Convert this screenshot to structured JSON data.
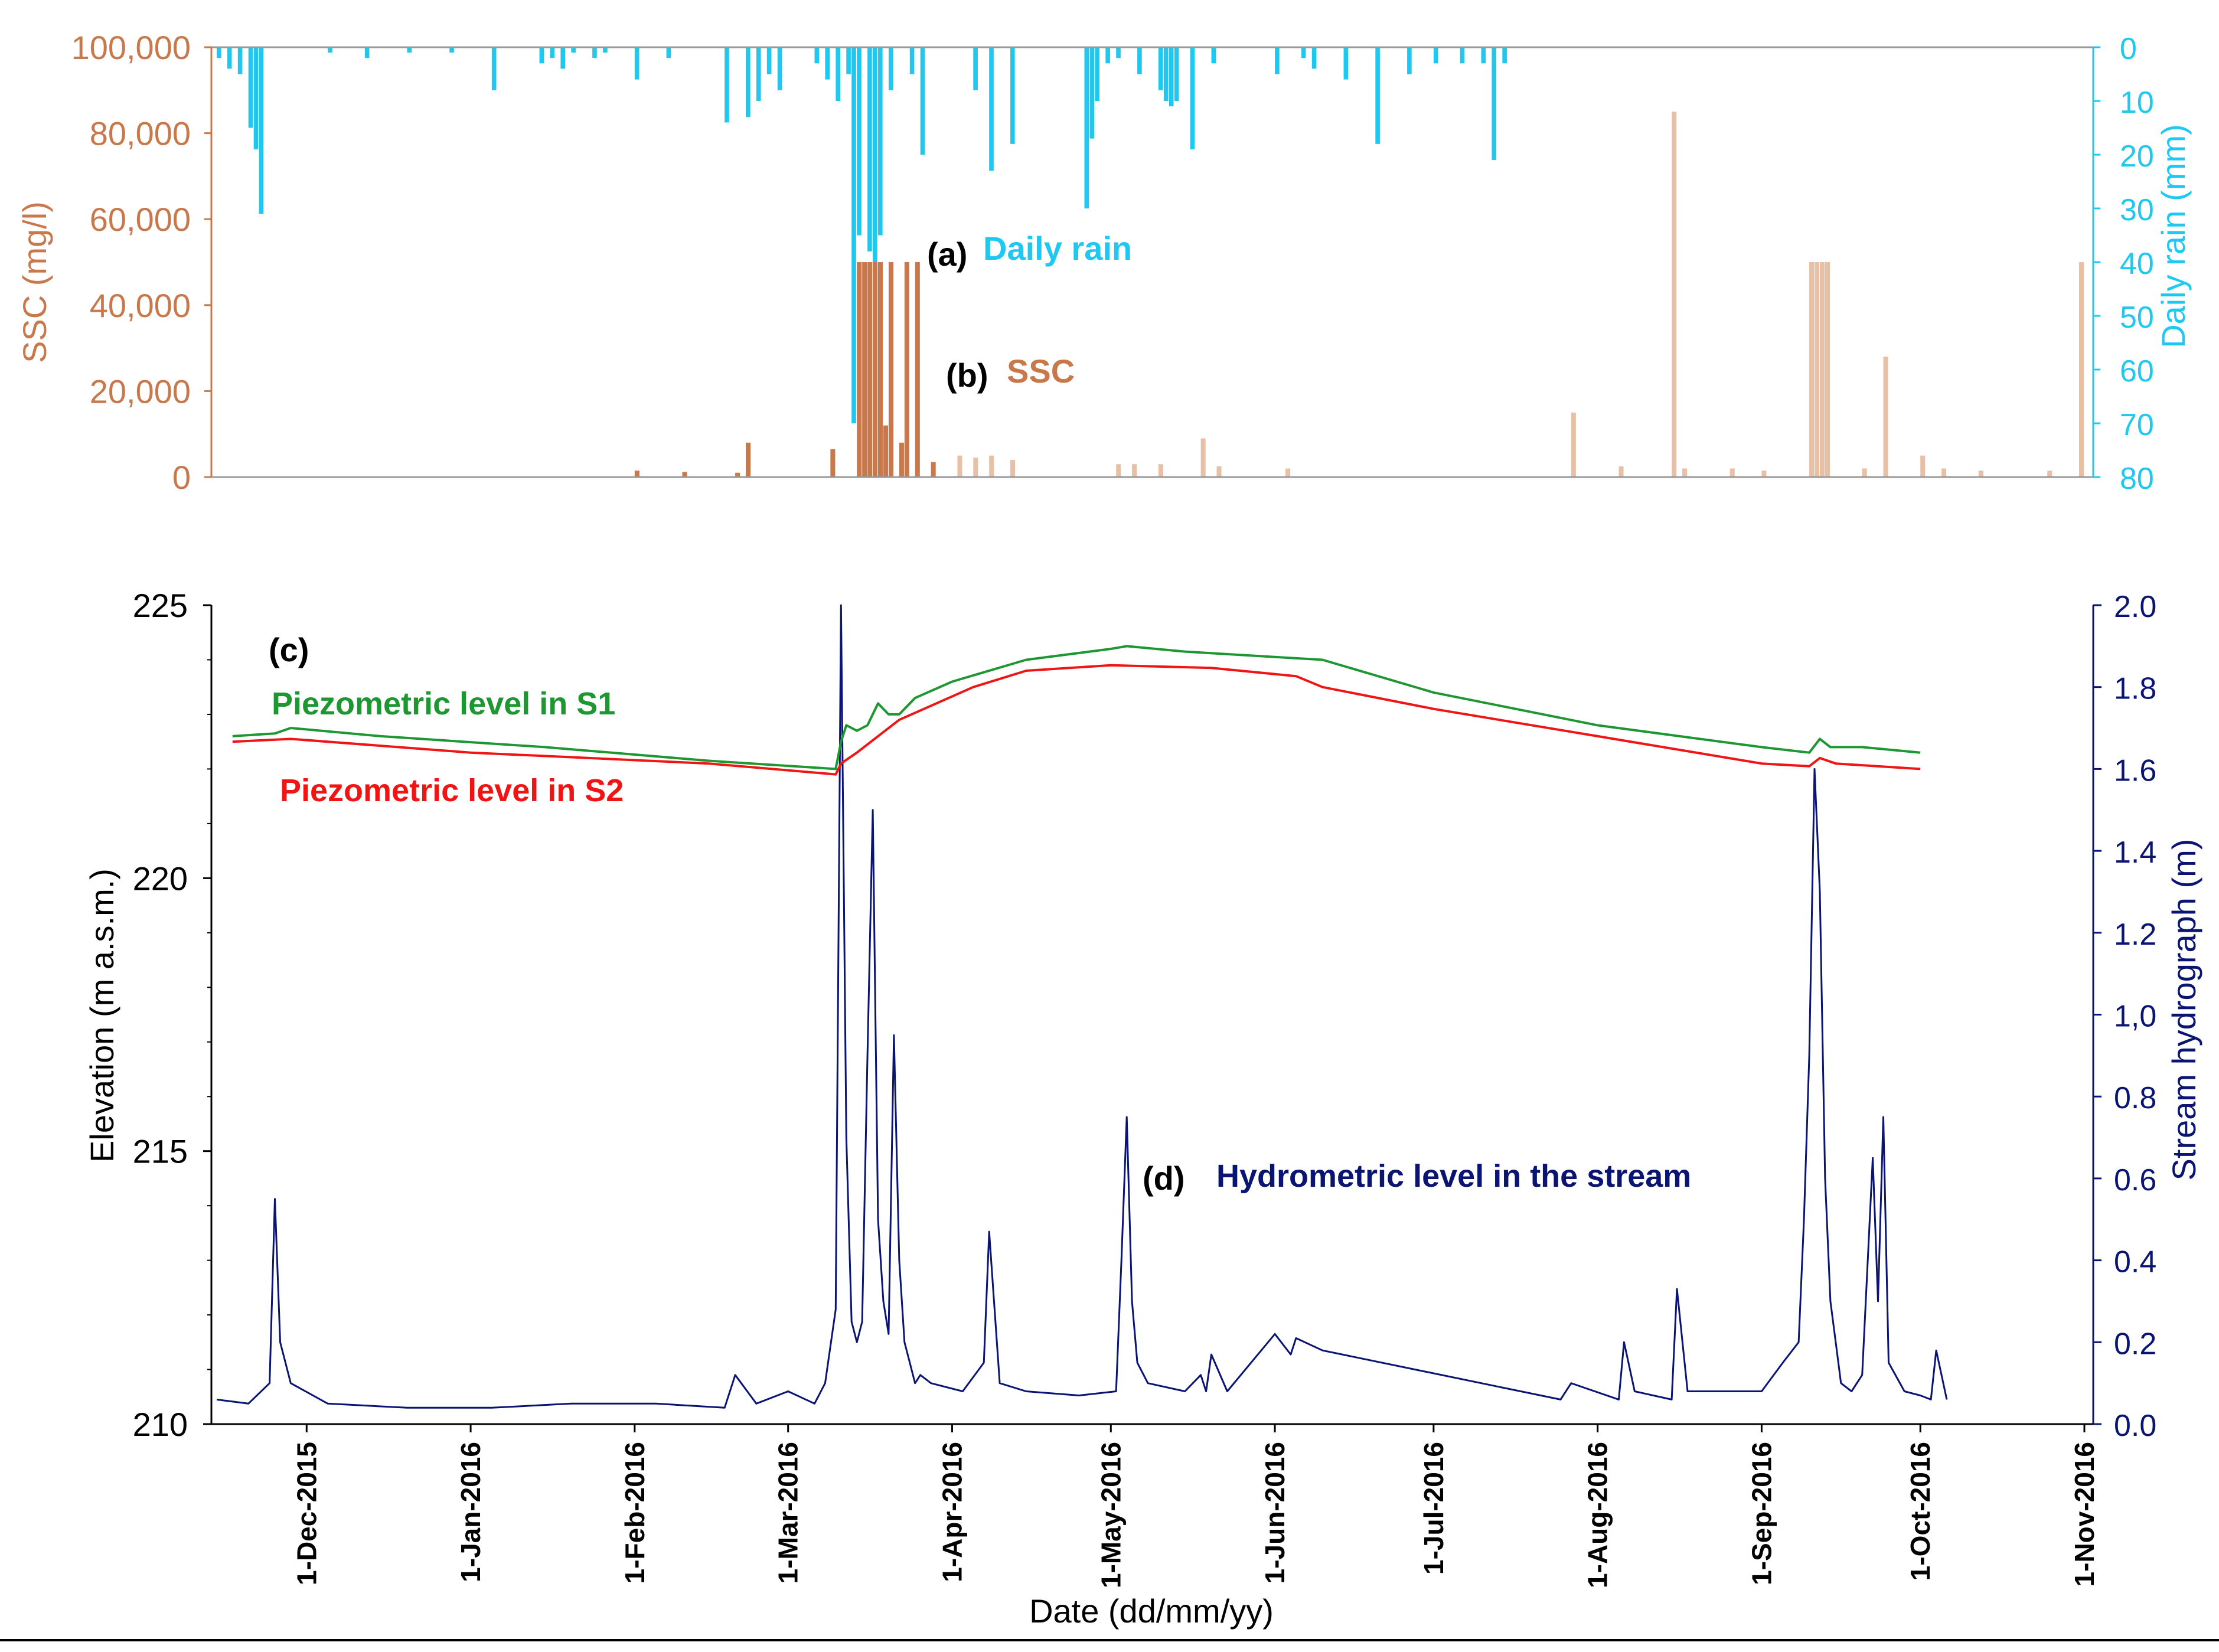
{
  "colors": {
    "rain": "#1ec8f0",
    "ssc": "#c8784a",
    "ssc_light": "#e8c0a6",
    "s1": "#1e9632",
    "s2": "#f01414",
    "stream": "#0a1473",
    "axis": "#000000"
  },
  "chart_data": [
    {
      "type": "bar",
      "panel": "top",
      "title": "",
      "xlabel": "Date (dd/mm/yy)",
      "ylabel_left": "SSC (mg/l)",
      "ylabel_right": "Daily rain (mm)",
      "xlim": [
        "2015-11-13",
        "2016-11-01"
      ],
      "ylim_left": [
        0,
        100000
      ],
      "ylim_right": [
        80,
        0
      ],
      "yticks_left": [
        "100,000",
        "80,000",
        "60,000",
        "40,000",
        "20,000",
        "0"
      ],
      "yticks_right": [
        "0",
        "10",
        "20",
        "30",
        "40",
        "50",
        "60",
        "70",
        "80"
      ],
      "annotations": [
        {
          "label": "(a)",
          "text": "Daily rain"
        },
        {
          "label": "(b)",
          "text": "SSC"
        }
      ],
      "series": [
        {
          "name": "Daily rain",
          "axis": "right",
          "dates": [
            "2015-11-14",
            "2015-11-16",
            "2015-11-18",
            "2015-11-20",
            "2015-11-21",
            "2015-11-22",
            "2015-12-05",
            "2015-12-12",
            "2015-12-20",
            "2015-12-28",
            "2016-01-05",
            "2016-01-14",
            "2016-01-16",
            "2016-01-18",
            "2016-01-20",
            "2016-01-24",
            "2016-01-26",
            "2016-02-01",
            "2016-02-07",
            "2016-02-18",
            "2016-02-22",
            "2016-02-24",
            "2016-02-26",
            "2016-02-28",
            "2016-03-06",
            "2016-03-08",
            "2016-03-10",
            "2016-03-12",
            "2016-03-13",
            "2016-03-14",
            "2016-03-16",
            "2016-03-17",
            "2016-03-18",
            "2016-03-20",
            "2016-03-24",
            "2016-03-26",
            "2016-04-05",
            "2016-04-08",
            "2016-04-12",
            "2016-04-26",
            "2016-04-27",
            "2016-04-28",
            "2016-04-30",
            "2016-05-02",
            "2016-05-06",
            "2016-05-10",
            "2016-05-11",
            "2016-05-12",
            "2016-05-13",
            "2016-05-16",
            "2016-05-20",
            "2016-06-01",
            "2016-06-06",
            "2016-06-08",
            "2016-06-14",
            "2016-06-20",
            "2016-06-26",
            "2016-07-01",
            "2016-07-06",
            "2016-07-10",
            "2016-07-12",
            "2016-07-14"
          ],
          "values": [
            2,
            4,
            5,
            15,
            19,
            31,
            1,
            2,
            1,
            1,
            8,
            3,
            2,
            4,
            1,
            2,
            1,
            6,
            2,
            14,
            13,
            10,
            5,
            8,
            3,
            6,
            10,
            5,
            70,
            35,
            38,
            40,
            35,
            8,
            5,
            20,
            8,
            23,
            18,
            30,
            17,
            10,
            3,
            2,
            5,
            8,
            10,
            11,
            10,
            19,
            3,
            5,
            2,
            4,
            6,
            18,
            5,
            3,
            3,
            3,
            21,
            3
          ]
        },
        {
          "name": "SSC",
          "axis": "left",
          "dates": [
            "2016-02-01",
            "2016-02-10",
            "2016-02-20",
            "2016-02-22",
            "2016-03-09",
            "2016-03-14",
            "2016-03-15",
            "2016-03-16",
            "2016-03-17",
            "2016-03-18",
            "2016-03-19",
            "2016-03-20",
            "2016-03-22",
            "2016-03-23",
            "2016-03-25",
            "2016-03-28",
            "2016-04-02",
            "2016-04-05",
            "2016-04-08",
            "2016-04-12",
            "2016-05-02",
            "2016-05-05",
            "2016-05-10",
            "2016-05-18",
            "2016-05-21",
            "2016-06-03",
            "2016-07-27",
            "2016-08-05",
            "2016-08-15",
            "2016-08-17",
            "2016-08-26",
            "2016-09-01",
            "2016-09-10",
            "2016-09-11",
            "2016-09-12",
            "2016-09-13",
            "2016-09-20",
            "2016-09-24",
            "2016-10-01",
            "2016-10-05",
            "2016-10-12",
            "2016-10-25",
            "2016-10-31"
          ],
          "values": [
            1500,
            1200,
            1000,
            8000,
            6500,
            50000,
            50000,
            50000,
            50000,
            50000,
            12000,
            50000,
            8000,
            50000,
            50000,
            3500,
            5000,
            4500,
            5000,
            4000,
            3000,
            3000,
            3000,
            9000,
            2500,
            2000,
            15000,
            2500,
            85000,
            2000,
            2000,
            1500,
            50000,
            50000,
            50000,
            50000,
            2000,
            28000,
            5000,
            2000,
            1500,
            1500,
            50000
          ]
        }
      ]
    },
    {
      "type": "line",
      "panel": "bottom",
      "title": "",
      "xlabel": "Date (dd/mm/yy)",
      "ylabel_left": "Elevation (m a.s.m.)",
      "ylabel_right": "Stream hydrograph (m)",
      "xlim": [
        "2015-11-13",
        "2016-11-01"
      ],
      "ylim_left": [
        210,
        225
      ],
      "ylim_right": [
        0,
        2.0
      ],
      "yticks_left": [
        "225",
        "220",
        "215",
        "210"
      ],
      "yticks_right": [
        "2.0",
        "1.8",
        "1.6",
        "1.4",
        "1.2",
        "1,0",
        "0.8",
        "0.6",
        "0.4",
        "0.2",
        "0.0"
      ],
      "xticks": [
        "1-Dec-2015",
        "1-Jan-2016",
        "1-Feb-2016",
        "1-Mar-2016",
        "1-Apr-2016",
        "1-May-2016",
        "1-Jun-2016",
        "1-Jul-2016",
        "1-Aug-2016",
        "1-Sep-2016",
        "1-Oct-2016",
        "1-Nov-2016"
      ],
      "annotations": [
        {
          "label": "(c)",
          "text": ""
        },
        {
          "label": "",
          "text": "Piezometric level in S1"
        },
        {
          "label": "",
          "text": "Piezometric level in S2"
        },
        {
          "label": "(d)",
          "text": "Hydrometric level in the stream"
        }
      ],
      "series": [
        {
          "name": "Piezometric level in S1",
          "axis": "left",
          "dates": [
            "2015-11-17",
            "2015-11-25",
            "2015-11-28",
            "2015-12-15",
            "2016-01-15",
            "2016-02-15",
            "2016-03-10",
            "2016-03-11",
            "2016-03-12",
            "2016-03-14",
            "2016-03-16",
            "2016-03-18",
            "2016-03-20",
            "2016-03-22",
            "2016-03-25",
            "2016-04-01",
            "2016-04-15",
            "2016-05-01",
            "2016-05-04",
            "2016-05-15",
            "2016-06-01",
            "2016-06-10",
            "2016-07-01",
            "2016-08-01",
            "2016-09-01",
            "2016-09-10",
            "2016-09-12",
            "2016-09-14",
            "2016-09-20",
            "2016-10-01"
          ],
          "values": [
            222.6,
            222.65,
            222.75,
            222.6,
            222.4,
            222.15,
            222.0,
            222.5,
            222.8,
            222.7,
            222.8,
            223.2,
            223.0,
            223.0,
            223.3,
            223.6,
            224.0,
            224.2,
            224.25,
            224.15,
            224.05,
            224.0,
            223.4,
            222.8,
            222.4,
            222.3,
            222.55,
            222.4,
            222.4,
            222.3
          ]
        },
        {
          "name": "Piezometric level in S2",
          "axis": "left",
          "dates": [
            "2015-11-17",
            "2015-11-28",
            "2016-01-01",
            "2016-02-15",
            "2016-03-10",
            "2016-03-11",
            "2016-03-14",
            "2016-03-18",
            "2016-03-22",
            "2016-04-05",
            "2016-04-15",
            "2016-05-01",
            "2016-05-20",
            "2016-06-05",
            "2016-06-10",
            "2016-07-01",
            "2016-08-01",
            "2016-09-01",
            "2016-09-10",
            "2016-09-12",
            "2016-09-15",
            "2016-10-01"
          ],
          "values": [
            222.5,
            222.55,
            222.3,
            222.1,
            221.9,
            222.1,
            222.3,
            222.6,
            222.9,
            223.5,
            223.8,
            223.9,
            223.85,
            223.7,
            223.5,
            223.1,
            222.6,
            222.1,
            222.05,
            222.2,
            222.1,
            222.0
          ]
        },
        {
          "name": "Hydrometric level in the stream",
          "axis": "right",
          "dates": [
            "2015-11-14",
            "2015-11-20",
            "2015-11-24",
            "2015-11-25",
            "2015-11-26",
            "2015-11-28",
            "2015-12-05",
            "2015-12-20",
            "2016-01-05",
            "2016-01-20",
            "2016-02-05",
            "2016-02-18",
            "2016-02-20",
            "2016-02-24",
            "2016-03-01",
            "2016-03-06",
            "2016-03-08",
            "2016-03-10",
            "2016-03-11",
            "2016-03-12",
            "2016-03-13",
            "2016-03-14",
            "2016-03-15",
            "2016-03-16",
            "2016-03-17",
            "2016-03-18",
            "2016-03-19",
            "2016-03-20",
            "2016-03-21",
            "2016-03-22",
            "2016-03-23",
            "2016-03-24",
            "2016-03-25",
            "2016-03-26",
            "2016-03-28",
            "2016-04-03",
            "2016-04-07",
            "2016-04-08",
            "2016-04-10",
            "2016-04-15",
            "2016-04-25",
            "2016-05-02",
            "2016-05-03",
            "2016-05-04",
            "2016-05-05",
            "2016-05-06",
            "2016-05-08",
            "2016-05-15",
            "2016-05-18",
            "2016-05-19",
            "2016-05-20",
            "2016-05-23",
            "2016-06-01",
            "2016-06-04",
            "2016-06-05",
            "2016-06-10",
            "2016-07-25",
            "2016-07-27",
            "2016-08-05",
            "2016-08-06",
            "2016-08-08",
            "2016-08-15",
            "2016-08-16",
            "2016-08-18",
            "2016-08-25",
            "2016-09-01",
            "2016-09-05",
            "2016-09-08",
            "2016-09-09",
            "2016-09-10",
            "2016-09-11",
            "2016-09-12",
            "2016-09-13",
            "2016-09-14",
            "2016-09-15",
            "2016-09-16",
            "2016-09-18",
            "2016-09-20",
            "2016-09-22",
            "2016-09-23",
            "2016-09-24",
            "2016-09-25",
            "2016-09-28",
            "2016-10-01",
            "2016-10-03",
            "2016-10-04",
            "2016-10-06"
          ],
          "values": [
            0.06,
            0.05,
            0.1,
            0.55,
            0.2,
            0.1,
            0.05,
            0.04,
            0.04,
            0.05,
            0.05,
            0.04,
            0.12,
            0.05,
            0.08,
            0.05,
            0.1,
            0.28,
            2.0,
            0.7,
            0.25,
            0.2,
            0.25,
            0.9,
            1.5,
            0.5,
            0.3,
            0.22,
            0.95,
            0.4,
            0.2,
            0.15,
            0.1,
            0.12,
            0.1,
            0.08,
            0.15,
            0.47,
            0.1,
            0.08,
            0.07,
            0.08,
            0.4,
            0.75,
            0.3,
            0.15,
            0.1,
            0.08,
            0.12,
            0.08,
            0.17,
            0.08,
            0.22,
            0.17,
            0.21,
            0.18,
            0.06,
            0.1,
            0.06,
            0.2,
            0.08,
            0.06,
            0.33,
            0.08,
            0.08,
            0.08,
            0.15,
            0.2,
            0.5,
            0.9,
            1.6,
            1.3,
            0.6,
            0.3,
            0.2,
            0.1,
            0.08,
            0.12,
            0.65,
            0.3,
            0.75,
            0.15,
            0.08,
            0.07,
            0.06,
            0.18,
            0.06
          ]
        }
      ]
    }
  ]
}
